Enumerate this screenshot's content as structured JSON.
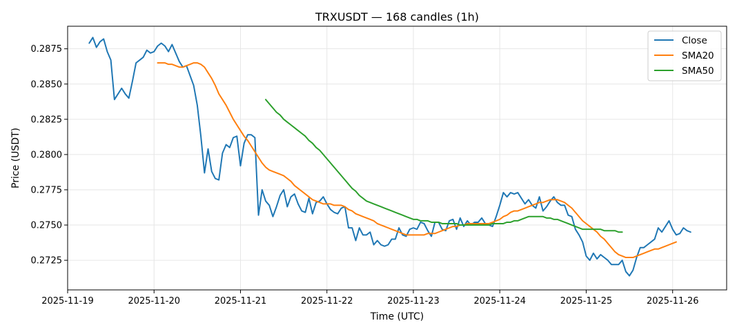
{
  "chart_data": {
    "type": "line",
    "title": "TRXUSDT — 168 candles (1h)",
    "xlabel": "Time (UTC)",
    "ylabel": "Price (USDT)",
    "x_start": "2025-11-19 06:00",
    "interval_hours": 1,
    "xlim": [
      "2025-11-19 00:00",
      "2025-11-26 15:00"
    ],
    "ylim": [
      0.2704,
      0.2891
    ],
    "x_ticks": [
      "2025-11-19",
      "2025-11-20",
      "2025-11-21",
      "2025-11-22",
      "2025-11-23",
      "2025-11-24",
      "2025-11-25",
      "2025-11-26"
    ],
    "y_ticks": [
      "0.2725",
      "0.2750",
      "0.2775",
      "0.2800",
      "0.2825",
      "0.2850",
      "0.2875"
    ],
    "grid": true,
    "legend_position": "top-right",
    "series": [
      {
        "name": "Close",
        "color": "#1f77b4",
        "values": [
          0.2879,
          0.2883,
          0.2876,
          0.288,
          0.2882,
          0.2873,
          0.2867,
          0.2839,
          0.2843,
          0.2847,
          0.2843,
          0.284,
          0.2852,
          0.2865,
          0.2867,
          0.2869,
          0.2874,
          0.2872,
          0.2873,
          0.2877,
          0.2879,
          0.2877,
          0.2873,
          0.2878,
          0.2872,
          0.2866,
          0.2862,
          0.2863,
          0.2856,
          0.2849,
          0.2835,
          0.2813,
          0.2787,
          0.2804,
          0.2788,
          0.2783,
          0.2782,
          0.2801,
          0.2807,
          0.2805,
          0.2812,
          0.2813,
          0.2792,
          0.2808,
          0.2814,
          0.2814,
          0.2812,
          0.2757,
          0.2775,
          0.2767,
          0.2764,
          0.2756,
          0.2763,
          0.2771,
          0.2775,
          0.2763,
          0.277,
          0.2772,
          0.2765,
          0.276,
          0.2759,
          0.2769,
          0.2758,
          0.2766,
          0.2767,
          0.277,
          0.2765,
          0.2761,
          0.2759,
          0.2758,
          0.2762,
          0.2763,
          0.2748,
          0.2748,
          0.2739,
          0.2748,
          0.2743,
          0.2743,
          0.2745,
          0.2736,
          0.2739,
          0.2736,
          0.2735,
          0.2736,
          0.274,
          0.274,
          0.2748,
          0.2743,
          0.2742,
          0.2747,
          0.2748,
          0.2747,
          0.2752,
          0.2751,
          0.2746,
          0.2742,
          0.2752,
          0.2752,
          0.2747,
          0.2746,
          0.2753,
          0.2754,
          0.2747,
          0.2755,
          0.2749,
          0.2753,
          0.275,
          0.2752,
          0.2752,
          0.2755,
          0.2751,
          0.275,
          0.2749,
          0.2756,
          0.2764,
          0.2773,
          0.277,
          0.2773,
          0.2772,
          0.2773,
          0.2769,
          0.2765,
          0.2768,
          0.2764,
          0.2762,
          0.277,
          0.276,
          0.2763,
          0.2767,
          0.277,
          0.2766,
          0.2764,
          0.2764,
          0.2757,
          0.2756,
          0.2747,
          0.2743,
          0.2738,
          0.2728,
          0.2725,
          0.273,
          0.2726,
          0.2729,
          0.2727,
          0.2725,
          0.2722,
          0.2722,
          0.2722,
          0.2725,
          0.2717,
          0.2714,
          0.2718,
          0.2727,
          0.2734,
          0.2734,
          0.2736,
          0.2738,
          0.274,
          0.2748,
          0.2745,
          0.2749,
          0.2753,
          0.2747,
          0.2743,
          0.2744,
          0.2748,
          0.2746,
          0.2745
        ]
      },
      {
        "name": "SMA20",
        "color": "#ff7f0e",
        "values": [
          null,
          null,
          null,
          null,
          null,
          null,
          null,
          null,
          null,
          null,
          null,
          null,
          null,
          null,
          null,
          null,
          null,
          null,
          null,
          0.2865,
          0.2865,
          0.2865,
          0.2864,
          0.2864,
          0.2863,
          0.2862,
          0.2862,
          0.2863,
          0.2864,
          0.2865,
          0.2865,
          0.2864,
          0.2862,
          0.2858,
          0.2854,
          0.2849,
          0.2843,
          0.2839,
          0.2835,
          0.283,
          0.2825,
          0.2821,
          0.2817,
          0.2813,
          0.281,
          0.2806,
          0.2802,
          0.2798,
          0.2794,
          0.2791,
          0.2789,
          0.2788,
          0.2787,
          0.2786,
          0.2785,
          0.2783,
          0.2781,
          0.2778,
          0.2776,
          0.2774,
          0.2772,
          0.277,
          0.2768,
          0.2767,
          0.2766,
          0.2765,
          0.2765,
          0.2765,
          0.2764,
          0.2764,
          0.2764,
          0.2763,
          0.2761,
          0.276,
          0.2758,
          0.2757,
          0.2756,
          0.2755,
          0.2754,
          0.2753,
          0.2751,
          0.275,
          0.2749,
          0.2748,
          0.2747,
          0.2746,
          0.2745,
          0.2744,
          0.2743,
          0.2743,
          0.2743,
          0.2743,
          0.2743,
          0.2743,
          0.2744,
          0.2744,
          0.2744,
          0.2745,
          0.2746,
          0.2747,
          0.2748,
          0.2749,
          0.2749,
          0.275,
          0.275,
          0.2751,
          0.2751,
          0.2751,
          0.2751,
          0.2751,
          0.2751,
          0.2751,
          0.2752,
          0.2753,
          0.2754,
          0.2756,
          0.2757,
          0.2759,
          0.276,
          0.276,
          0.2761,
          0.2762,
          0.2763,
          0.2764,
          0.2765,
          0.2766,
          0.2766,
          0.2767,
          0.2768,
          0.2768,
          0.2768,
          0.2767,
          0.2766,
          0.2764,
          0.2762,
          0.2759,
          0.2756,
          0.2753,
          0.2751,
          0.2749,
          0.2747,
          0.2745,
          0.2742,
          0.274,
          0.2737,
          0.2734,
          0.2731,
          0.2729,
          0.2728,
          0.2727,
          0.2727,
          0.2727,
          0.2728,
          0.2729,
          0.273,
          0.2731,
          0.2732,
          0.2733,
          0.2733,
          0.2734,
          0.2735,
          0.2736,
          0.2737,
          0.2738
        ]
      },
      {
        "name": "SMA50",
        "color": "#2ca02c",
        "values": [
          null,
          null,
          null,
          null,
          null,
          null,
          null,
          null,
          null,
          null,
          null,
          null,
          null,
          null,
          null,
          null,
          null,
          null,
          null,
          null,
          null,
          null,
          null,
          null,
          null,
          null,
          null,
          null,
          null,
          null,
          null,
          null,
          null,
          null,
          null,
          null,
          null,
          null,
          null,
          null,
          null,
          null,
          null,
          null,
          null,
          null,
          null,
          null,
          null,
          0.2839,
          0.2836,
          0.2833,
          0.283,
          0.2828,
          0.2825,
          0.2823,
          0.2821,
          0.2819,
          0.2817,
          0.2815,
          0.2813,
          0.281,
          0.2808,
          0.2805,
          0.2803,
          0.28,
          0.2797,
          0.2794,
          0.2791,
          0.2788,
          0.2785,
          0.2782,
          0.2779,
          0.2776,
          0.2774,
          0.2771,
          0.2769,
          0.2767,
          0.2766,
          0.2765,
          0.2764,
          0.2763,
          0.2762,
          0.2761,
          0.276,
          0.2759,
          0.2758,
          0.2757,
          0.2756,
          0.2755,
          0.2754,
          0.2754,
          0.2753,
          0.2753,
          0.2753,
          0.2752,
          0.2752,
          0.2752,
          0.2751,
          0.2751,
          0.2751,
          0.2751,
          0.2751,
          0.275,
          0.275,
          0.275,
          0.275,
          0.275,
          0.275,
          0.275,
          0.275,
          0.275,
          0.2751,
          0.2751,
          0.2751,
          0.2751,
          0.2752,
          0.2752,
          0.2753,
          0.2753,
          0.2754,
          0.2755,
          0.2756,
          0.2756,
          0.2756,
          0.2756,
          0.2756,
          0.2755,
          0.2755,
          0.2754,
          0.2754,
          0.2753,
          0.2752,
          0.2751,
          0.275,
          0.2749,
          0.2748,
          0.2747,
          0.2747,
          0.2747,
          0.2747,
          0.2747,
          0.2747,
          0.2746,
          0.2746,
          0.2746,
          0.2746,
          0.2745,
          0.2745
        ]
      }
    ]
  }
}
